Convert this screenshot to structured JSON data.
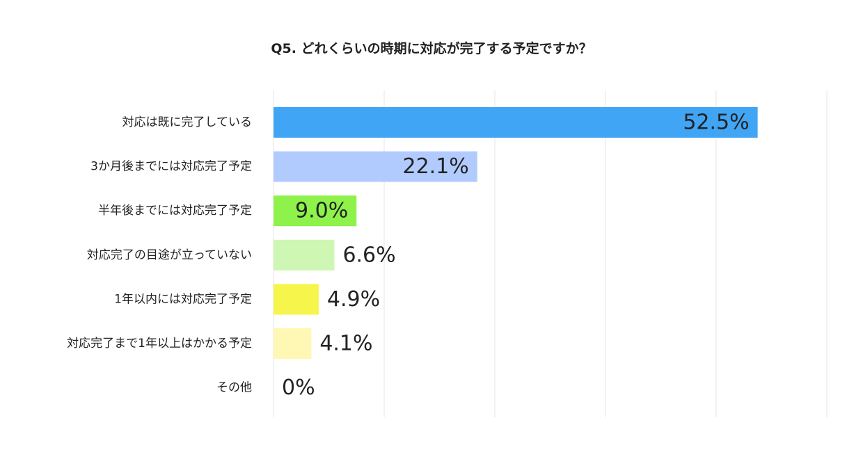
{
  "chart_data": {
    "type": "bar",
    "orientation": "horizontal",
    "title": "Q5. どれくらいの時期に対応が完了する予定ですか？",
    "categories": [
      "対応は既に完了している",
      "3か月後までには対応完了予定",
      "半年後までには対応完了予定",
      "対応完了の目途が立っていない",
      "1年以内には対応完了予定",
      "対応完了まで1年以上はかかる予定",
      "その他"
    ],
    "values": [
      52.5,
      22.1,
      9.0,
      6.6,
      4.9,
      4.1,
      0
    ],
    "value_labels": [
      "52.5%",
      "22.1%",
      "9.0%",
      "6.6%",
      "4.9%",
      "4.1%",
      "0%"
    ],
    "colors": [
      "#41a5f5",
      "#b2cbff",
      "#8ef24a",
      "#cff7b4",
      "#f6f54c",
      "#fef8b4",
      "#cccccc"
    ],
    "xlim": [
      0,
      60
    ],
    "grid": true,
    "legend": "none"
  }
}
